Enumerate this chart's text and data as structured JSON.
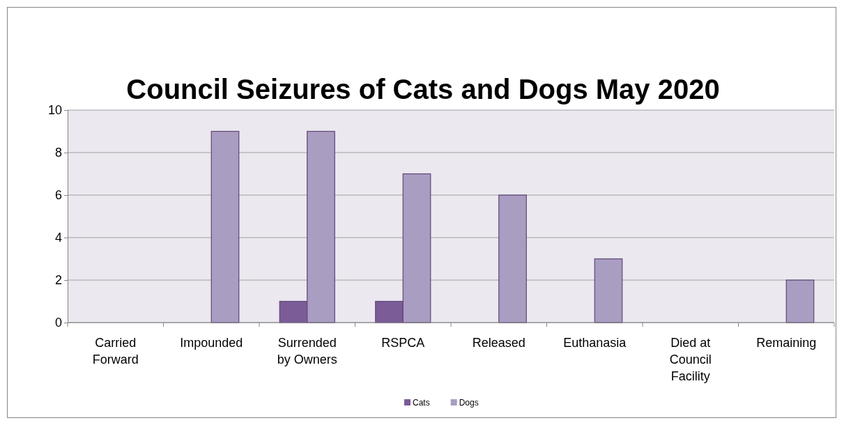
{
  "chart_data": {
    "type": "bar",
    "title": "Council Seizures of Cats and Dogs May 2020",
    "categories": [
      "Carried Forward",
      "Impounded",
      "Surrended by Owners",
      "RSPCA",
      "Released",
      "Euthanasia",
      "Died at Council Facility",
      "Remaining"
    ],
    "series": [
      {
        "name": "Cats",
        "color": "#7b5c97",
        "values": [
          0,
          0,
          1,
          1,
          0,
          0,
          0,
          0
        ]
      },
      {
        "name": "Dogs",
        "color": "#a99dc1",
        "values": [
          0,
          9,
          9,
          7,
          6,
          3,
          0,
          2
        ]
      }
    ],
    "ylim": [
      0,
      10
    ],
    "yticks": [
      0,
      2,
      4,
      6,
      8,
      10
    ],
    "grid": "y",
    "legend": "bottom"
  }
}
